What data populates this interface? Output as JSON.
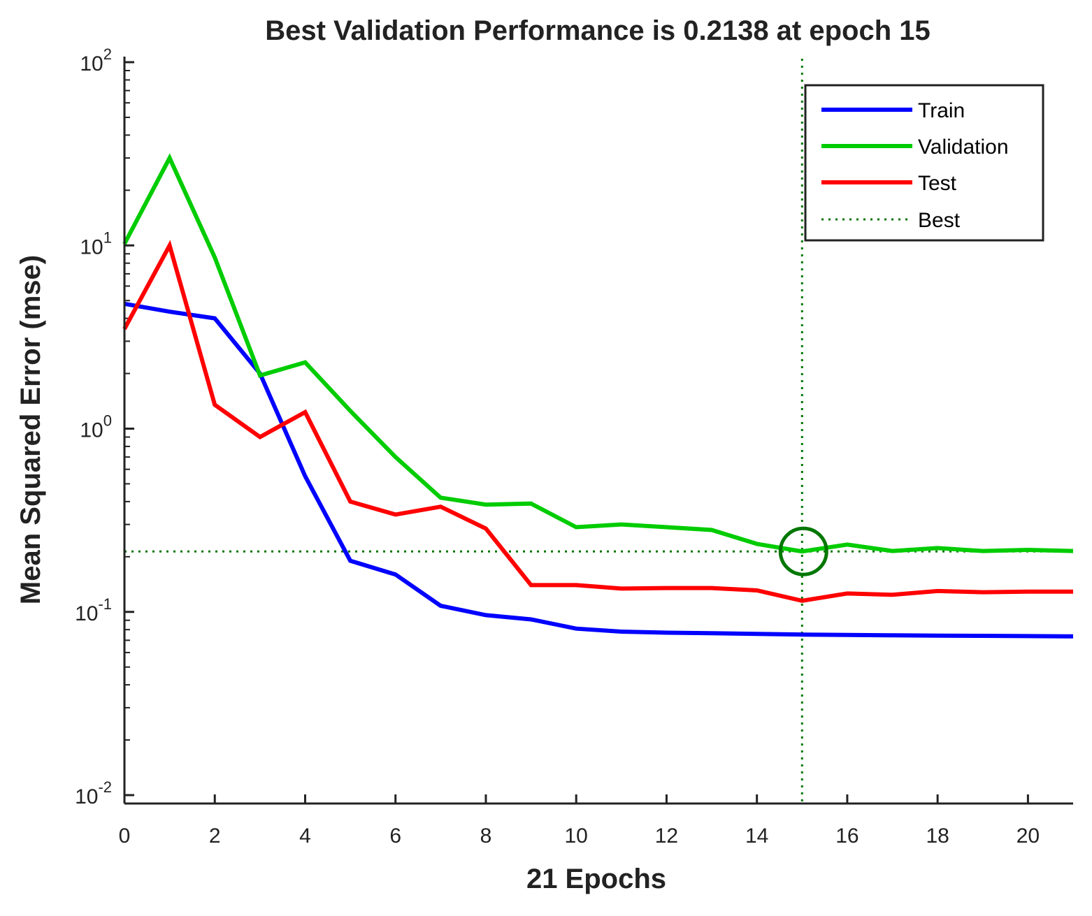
{
  "chart_data": {
    "type": "line",
    "title": "Best Validation Performance is 0.2138 at epoch 15",
    "xlabel": "21 Epochs",
    "ylabel": "Mean Squared Error  (mse)",
    "yscale": "log",
    "xlim": [
      0,
      21
    ],
    "ylim": [
      0.01,
      100
    ],
    "x_ticks": [
      "0",
      "2",
      "4",
      "6",
      "8",
      "10",
      "12",
      "14",
      "16",
      "18",
      "20"
    ],
    "y_ticks": [
      {
        "base": "10",
        "exp": "-2"
      },
      {
        "base": "10",
        "exp": "-1"
      },
      {
        "base": "10",
        "exp": "0"
      },
      {
        "base": "10",
        "exp": "1"
      },
      {
        "base": "10",
        "exp": "2"
      }
    ],
    "x": [
      0,
      1,
      2,
      3,
      4,
      5,
      6,
      7,
      8,
      9,
      10,
      11,
      12,
      13,
      14,
      15,
      16,
      17,
      18,
      19,
      20,
      21
    ],
    "series": [
      {
        "name": "Train",
        "color": "#0000ff",
        "values": [
          4.8,
          4.35,
          4.0,
          2.0,
          0.55,
          0.19,
          0.16,
          0.108,
          0.096,
          0.091,
          0.081,
          0.078,
          0.077,
          0.0765,
          0.0758,
          0.0752,
          0.0748,
          0.0745,
          0.0742,
          0.074,
          0.0738,
          0.0735
        ]
      },
      {
        "name": "Validation",
        "color": "#00cc00",
        "values": [
          10.2,
          30.0,
          8.6,
          1.95,
          2.3,
          1.25,
          0.7,
          0.42,
          0.385,
          0.39,
          0.29,
          0.3,
          0.29,
          0.28,
          0.235,
          0.2138,
          0.233,
          0.215,
          0.223,
          0.215,
          0.218,
          0.215
        ]
      },
      {
        "name": "Test",
        "color": "#ff0000",
        "values": [
          3.5,
          10.0,
          1.35,
          0.9,
          1.23,
          0.4,
          0.34,
          0.375,
          0.285,
          0.14,
          0.14,
          0.134,
          0.135,
          0.135,
          0.131,
          0.115,
          0.126,
          0.124,
          0.13,
          0.128,
          0.129,
          0.129
        ]
      }
    ],
    "best": {
      "label": "Best",
      "epoch": 15,
      "value": 0.2138,
      "color": "#007700"
    },
    "legend": {
      "placement": "top-right",
      "entries": [
        "Train",
        "Validation",
        "Test",
        "Best"
      ]
    }
  }
}
